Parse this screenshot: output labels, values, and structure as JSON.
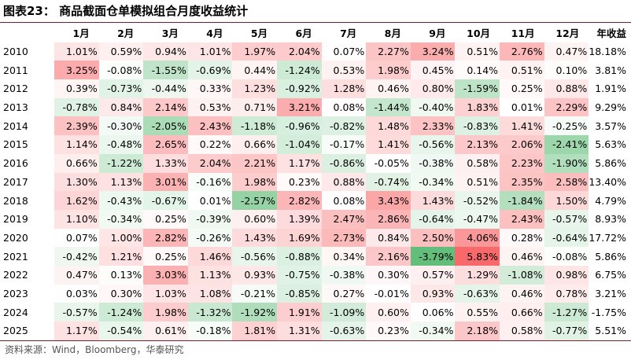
{
  "title": "图表23：  商品截面仓单模拟组合月度收益统计",
  "source": "资料来源：Wind，Bloomberg，华泰研究",
  "colors": {
    "positive_max": "#f8696b",
    "negative_max": "#63be7b",
    "neutral": "#ffffff",
    "rule": "#7a1f2b"
  },
  "chart_data": {
    "type": "heatmap",
    "column_headers": [
      "1月",
      "2月",
      "3月",
      "4月",
      "5月",
      "6月",
      "7月",
      "8月",
      "9月",
      "10月",
      "11月",
      "12月",
      "年收益"
    ],
    "rows": [
      {
        "year": "2010",
        "values": [
          "1.01%",
          "0.59%",
          "0.94%",
          "1.01%",
          "1.97%",
          "2.04%",
          "0.07%",
          "2.27%",
          "3.24%",
          "0.51%",
          "2.76%",
          "0.47%"
        ],
        "annual": "18.18%"
      },
      {
        "year": "2011",
        "values": [
          "3.25%",
          "-0.08%",
          "-1.55%",
          "-0.69%",
          "0.44%",
          "-1.24%",
          "0.53%",
          "1.98%",
          "0.45%",
          "0.14%",
          "0.51%",
          "0.10%"
        ],
        "annual": "3.81%"
      },
      {
        "year": "2012",
        "values": [
          "0.39%",
          "-0.73%",
          "-0.44%",
          "0.33%",
          "1.23%",
          "-0.92%",
          "1.28%",
          "0.46%",
          "0.80%",
          "-1.59%",
          "0.25%",
          "0.88%"
        ],
        "annual": "1.91%"
      },
      {
        "year": "2013",
        "values": [
          "-0.78%",
          "0.84%",
          "2.14%",
          "0.53%",
          "0.71%",
          "3.21%",
          "0.08%",
          "-1.44%",
          "-0.40%",
          "1.83%",
          "0.01%",
          "2.29%"
        ],
        "annual": "9.29%"
      },
      {
        "year": "2014",
        "values": [
          "2.39%",
          "-0.30%",
          "-2.05%",
          "2.43%",
          "-1.18%",
          "-0.96%",
          "-0.82%",
          "1.48%",
          "2.33%",
          "-0.83%",
          "1.41%",
          "-0.25%"
        ],
        "annual": "3.57%"
      },
      {
        "year": "2015",
        "values": [
          "1.14%",
          "-0.48%",
          "2.65%",
          "0.22%",
          "0.66%",
          "-1.04%",
          "-0.17%",
          "1.41%",
          "-0.56%",
          "2.13%",
          "2.06%",
          "-2.41%"
        ],
        "annual": "5.63%"
      },
      {
        "year": "2016",
        "values": [
          "0.66%",
          "-1.22%",
          "1.33%",
          "2.04%",
          "2.21%",
          "1.17%",
          "-0.86%",
          "-0.05%",
          "-0.38%",
          "0.58%",
          "2.23%",
          "-1.90%"
        ],
        "annual": "5.86%"
      },
      {
        "year": "2017",
        "values": [
          "1.30%",
          "1.13%",
          "3.01%",
          "-0.16%",
          "1.98%",
          "0.23%",
          "0.88%",
          "-0.74%",
          "-0.34%",
          "0.51%",
          "2.35%",
          "2.58%"
        ],
        "annual": "13.40%"
      },
      {
        "year": "2018",
        "values": [
          "1.62%",
          "-0.43%",
          "-0.67%",
          "0.01%",
          "-2.57%",
          "2.82%",
          "0.08%",
          "3.43%",
          "1.43%",
          "-0.52%",
          "-1.84%",
          "1.50%"
        ],
        "annual": "4.79%"
      },
      {
        "year": "2019",
        "values": [
          "1.10%",
          "-0.34%",
          "0.25%",
          "-0.39%",
          "0.60%",
          "1.39%",
          "2.47%",
          "2.86%",
          "-0.64%",
          "-0.47%",
          "2.43%",
          "-0.57%"
        ],
        "annual": "8.93%"
      },
      {
        "year": "2020",
        "values": [
          "0.07%",
          "1.00%",
          "2.82%",
          "-0.26%",
          "1.43%",
          "1.69%",
          "2.73%",
          "0.84%",
          "2.50%",
          "4.06%",
          "0.28%",
          "-0.64%"
        ],
        "annual": "17.72%"
      },
      {
        "year": "2021",
        "values": [
          "-0.42%",
          "1.21%",
          "0.25%",
          "1.46%",
          "-0.56%",
          "-0.88%",
          "0.34%",
          "2.16%",
          "-3.79%",
          "5.83%",
          "0.46%",
          "-0.08%"
        ],
        "annual": "5.86%"
      },
      {
        "year": "2022",
        "values": [
          "0.47%",
          "0.13%",
          "3.03%",
          "1.13%",
          "0.93%",
          "-0.75%",
          "-0.38%",
          "0.30%",
          "0.57%",
          "1.29%",
          "-1.08%",
          "0.98%"
        ],
        "annual": "6.75%"
      },
      {
        "year": "2023",
        "values": [
          "0.03%",
          "0.30%",
          "1.03%",
          "1.08%",
          "-0.21%",
          "-0.85%",
          "0.27%",
          "-0.01%",
          "0.93%",
          "-0.63%",
          "0.46%",
          "0.78%"
        ],
        "annual": "3.21%"
      },
      {
        "year": "2024",
        "values": [
          "-0.57%",
          "-1.24%",
          "1.98%",
          "-1.32%",
          "-1.92%",
          "1.91%",
          "-1.09%",
          "0.60%",
          "0.06%",
          "0.55%",
          "0.66%",
          "-1.27%"
        ],
        "annual": "-1.75%"
      },
      {
        "year": "2025",
        "values": [
          "1.17%",
          "-0.54%",
          "0.61%",
          "-0.18%",
          "1.81%",
          "1.31%",
          "-0.63%",
          "0.23%",
          "-0.34%",
          "2.18%",
          "0.58%",
          "-0.77%"
        ],
        "annual": "5.51%"
      }
    ],
    "color_scale": {
      "min": -3.79,
      "max": 5.83
    }
  }
}
